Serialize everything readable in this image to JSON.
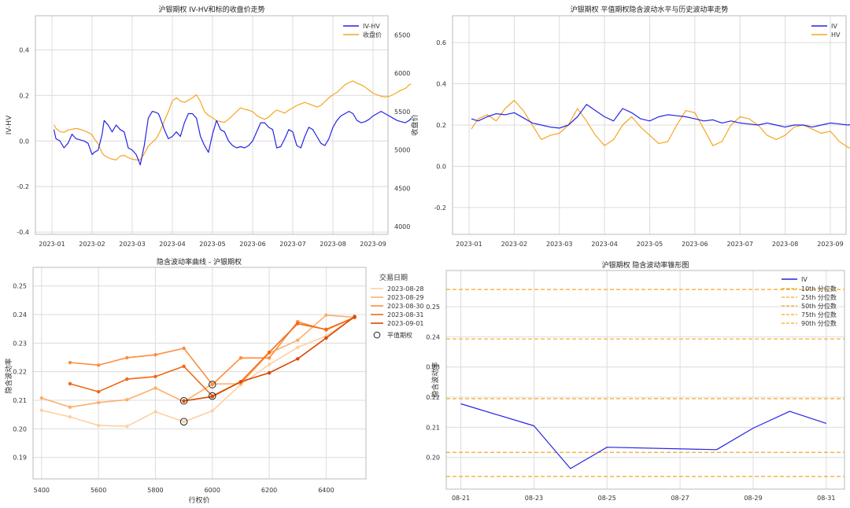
{
  "chart_data": [
    {
      "type": "line",
      "title": "沪银期权 IV-HV和标的收盘价走势",
      "xlabel": "",
      "ylabel": "IV-HV",
      "y2label": "收盘价",
      "ylim": [
        -0.41,
        0.55
      ],
      "y2lim": [
        3900,
        6750
      ],
      "yticks": [
        "-0.4",
        "-0.2",
        "0.0",
        "0.2",
        "0.4"
      ],
      "y2ticks": [
        "4000",
        "4500",
        "5000",
        "5500",
        "6000",
        "6500"
      ],
      "xticks": [
        "2023-01",
        "2023-02",
        "2023-03",
        "2023-04",
        "2023-05",
        "2023-06",
        "2023-07",
        "2023-08",
        "2023-09"
      ],
      "legend_position": "top-right",
      "grid": true,
      "series": [
        {
          "name": "IV-HV",
          "axis": "left",
          "color": "#2424e6",
          "x": [
            0.05,
            0.1,
            0.2,
            0.3,
            0.4,
            0.5,
            0.6,
            0.7,
            0.8,
            0.9,
            1.0,
            1.05,
            1.15,
            1.25,
            1.3,
            1.4,
            1.5,
            1.6,
            1.7,
            1.8,
            1.9,
            2.0,
            2.1,
            2.2,
            2.3,
            2.4,
            2.5,
            2.6,
            2.65,
            2.7,
            2.8,
            2.9,
            3.0,
            3.1,
            3.2,
            3.3,
            3.4,
            3.5,
            3.6,
            3.7,
            3.8,
            3.9,
            4.0,
            4.1,
            4.2,
            4.3,
            4.4,
            4.5,
            4.6,
            4.7,
            4.8,
            4.9,
            5.0,
            5.1,
            5.2,
            5.3,
            5.4,
            5.5,
            5.6,
            5.7,
            5.8,
            5.9,
            6.0,
            6.1,
            6.2,
            6.3,
            6.4,
            6.5,
            6.6,
            6.7,
            6.8,
            6.9,
            7.0,
            7.1,
            7.2,
            7.3,
            7.4,
            7.5,
            7.6,
            7.7,
            7.8,
            7.9,
            8.0,
            8.1,
            8.2,
            8.3,
            8.4,
            8.5,
            8.6,
            8.7,
            8.8,
            8.9,
            8.95
          ],
          "y": [
            0.05,
            0.01,
            0.0,
            -0.03,
            -0.01,
            0.03,
            0.01,
            0.005,
            0.0,
            -0.01,
            -0.06,
            -0.05,
            -0.04,
            0.03,
            0.09,
            0.07,
            0.04,
            0.07,
            0.05,
            0.04,
            -0.03,
            -0.04,
            -0.06,
            -0.105,
            -0.02,
            0.1,
            0.13,
            0.125,
            0.12,
            0.1,
            0.05,
            0.01,
            0.02,
            0.04,
            0.02,
            0.08,
            0.12,
            0.12,
            0.1,
            0.02,
            -0.02,
            -0.05,
            0.03,
            0.09,
            0.05,
            0.04,
            0.0,
            -0.02,
            -0.03,
            -0.025,
            -0.03,
            -0.02,
            0.0,
            0.04,
            0.08,
            0.08,
            0.06,
            0.05,
            -0.03,
            -0.025,
            0.01,
            0.05,
            0.04,
            -0.02,
            -0.03,
            0.02,
            0.06,
            0.05,
            0.02,
            -0.01,
            -0.02,
            0.01,
            0.06,
            0.09,
            0.11,
            0.12,
            0.13,
            0.12,
            0.09,
            0.08,
            0.085,
            0.095,
            0.11,
            0.12,
            0.13,
            0.12,
            0.11,
            0.1,
            0.09,
            0.085,
            0.08,
            0.09,
            0.1
          ]
        },
        {
          "name": "收盘价",
          "axis": "right",
          "color": "#f5a623",
          "x": [
            0.05,
            0.1,
            0.2,
            0.3,
            0.4,
            0.5,
            0.6,
            0.7,
            0.8,
            0.9,
            1.0,
            1.05,
            1.15,
            1.25,
            1.3,
            1.4,
            1.5,
            1.6,
            1.7,
            1.8,
            1.9,
            2.0,
            2.1,
            2.2,
            2.3,
            2.4,
            2.5,
            2.6,
            2.65,
            2.7,
            2.8,
            2.9,
            3.0,
            3.1,
            3.2,
            3.3,
            3.4,
            3.5,
            3.6,
            3.7,
            3.8,
            3.9,
            4.0,
            4.1,
            4.2,
            4.3,
            4.4,
            4.5,
            4.6,
            4.7,
            4.8,
            4.9,
            5.0,
            5.1,
            5.2,
            5.3,
            5.4,
            5.5,
            5.6,
            5.7,
            5.8,
            5.9,
            6.0,
            6.1,
            6.2,
            6.3,
            6.4,
            6.5,
            6.6,
            6.7,
            6.8,
            6.9,
            7.0,
            7.1,
            7.2,
            7.3,
            7.4,
            7.5,
            7.6,
            7.7,
            7.8,
            7.9,
            8.0,
            8.1,
            8.2,
            8.3,
            8.4,
            8.5,
            8.6,
            8.7,
            8.8,
            8.9,
            8.95
          ],
          "y": [
            5330,
            5280,
            5240,
            5230,
            5260,
            5270,
            5280,
            5270,
            5250,
            5230,
            5200,
            5150,
            5080,
            4960,
            4930,
            4900,
            4880,
            4870,
            4920,
            4930,
            4900,
            4880,
            4870,
            4870,
            4950,
            5050,
            5100,
            5150,
            5200,
            5250,
            5380,
            5500,
            5640,
            5680,
            5640,
            5620,
            5650,
            5680,
            5720,
            5630,
            5500,
            5450,
            5420,
            5380,
            5370,
            5360,
            5400,
            5450,
            5500,
            5550,
            5530,
            5520,
            5500,
            5450,
            5420,
            5400,
            5430,
            5480,
            5520,
            5500,
            5480,
            5520,
            5550,
            5580,
            5600,
            5620,
            5600,
            5580,
            5560,
            5580,
            5630,
            5680,
            5720,
            5750,
            5800,
            5850,
            5880,
            5900,
            5870,
            5850,
            5820,
            5780,
            5740,
            5720,
            5700,
            5690,
            5700,
            5720,
            5750,
            5780,
            5800,
            5850,
            5860
          ]
        }
      ]
    },
    {
      "type": "line",
      "title": "沪银期权 平值期权隐含波动水平与历史波动率走势",
      "xlabel": "",
      "ylabel": "",
      "ylim": [
        -0.33,
        0.73
      ],
      "yticks": [
        "-0.2",
        "0.0",
        "0.2",
        "0.4",
        "0.6"
      ],
      "xticks": [
        "2023-01",
        "2023-02",
        "2023-03",
        "2023-04",
        "2023-05",
        "2023-06",
        "2023-07",
        "2023-08",
        "2023-09"
      ],
      "legend_position": "top-right",
      "grid": true,
      "series": [
        {
          "name": "IV",
          "color": "#2424e6",
          "x": [
            0.05,
            0.2,
            0.4,
            0.6,
            0.8,
            1.0,
            1.2,
            1.4,
            1.6,
            1.8,
            2.0,
            2.2,
            2.4,
            2.6,
            2.8,
            3.0,
            3.2,
            3.4,
            3.6,
            3.8,
            4.0,
            4.2,
            4.4,
            4.6,
            4.8,
            5.0,
            5.2,
            5.4,
            5.6,
            5.8,
            6.0,
            6.2,
            6.4,
            6.6,
            6.8,
            7.0,
            7.2,
            7.4,
            7.6,
            7.8,
            8.0,
            8.2,
            8.4,
            8.6,
            8.8,
            8.95
          ],
          "y": [
            0.23,
            0.22,
            0.24,
            0.255,
            0.25,
            0.26,
            0.235,
            0.21,
            0.2,
            0.19,
            0.185,
            0.2,
            0.24,
            0.3,
            0.27,
            0.24,
            0.22,
            0.28,
            0.26,
            0.23,
            0.22,
            0.24,
            0.25,
            0.245,
            0.24,
            0.23,
            0.22,
            0.225,
            0.21,
            0.22,
            0.21,
            0.205,
            0.2,
            0.21,
            0.2,
            0.19,
            0.2,
            0.2,
            0.19,
            0.2,
            0.21,
            0.205,
            0.2,
            0.21,
            0.205,
            0.21
          ]
        },
        {
          "name": "HV",
          "color": "#f5a623",
          "x": [
            0.05,
            0.2,
            0.4,
            0.6,
            0.8,
            1.0,
            1.2,
            1.4,
            1.6,
            1.8,
            2.0,
            2.2,
            2.4,
            2.6,
            2.8,
            3.0,
            3.2,
            3.4,
            3.6,
            3.8,
            4.0,
            4.2,
            4.4,
            4.6,
            4.8,
            5.0,
            5.2,
            5.4,
            5.6,
            5.8,
            6.0,
            6.2,
            6.4,
            6.6,
            6.8,
            7.0,
            7.2,
            7.4,
            7.6,
            7.8,
            8.0,
            8.2,
            8.4,
            8.6,
            8.8,
            8.95
          ],
          "y": [
            0.18,
            0.23,
            0.25,
            0.22,
            0.28,
            0.32,
            0.27,
            0.2,
            0.13,
            0.15,
            0.16,
            0.2,
            0.28,
            0.22,
            0.15,
            0.1,
            0.13,
            0.2,
            0.24,
            0.19,
            0.15,
            0.11,
            0.12,
            0.2,
            0.27,
            0.26,
            0.18,
            0.1,
            0.12,
            0.2,
            0.24,
            0.23,
            0.2,
            0.15,
            0.13,
            0.15,
            0.19,
            0.2,
            0.18,
            0.16,
            0.17,
            0.12,
            0.09,
            0.08,
            0.1,
            0.12
          ]
        }
      ]
    },
    {
      "type": "line",
      "title": "隐含波动率曲线 - 沪银期权",
      "xlabel": "行权价",
      "ylabel": "隐含波动率",
      "xlim": [
        5370,
        6540
      ],
      "ylim": [
        0.1825,
        0.2565
      ],
      "xticks": [
        "5400",
        "5600",
        "5800",
        "6000",
        "6200",
        "6400"
      ],
      "yticks": [
        "0.19",
        "0.20",
        "0.21",
        "0.22",
        "0.23",
        "0.24",
        "0.25"
      ],
      "legend_title": "交易日期",
      "legend_position": "upper-right-outside",
      "grid": true,
      "series": [
        {
          "name": "2023-08-28",
          "color": "#fdd0a2",
          "x": [
            5400,
            5500,
            5600,
            5700,
            5800,
            5900,
            6000,
            6100,
            6200,
            6300,
            6400,
            6500
          ],
          "y": [
            0.2065,
            0.2042,
            0.2012,
            0.2009,
            0.206,
            0.2025,
            0.2063,
            0.2155,
            0.2225,
            0.2285,
            0.2325,
            0.239
          ]
        },
        {
          "name": "2023-08-29",
          "color": "#fdae6b",
          "x": [
            5400,
            5500,
            5600,
            5700,
            5800,
            5900,
            6000,
            6100,
            6200,
            6300,
            6400,
            6500
          ],
          "y": [
            0.2108,
            0.2076,
            0.2092,
            0.2102,
            0.2143,
            0.2095,
            0.2157,
            0.2158,
            0.2265,
            0.231,
            0.2398,
            0.239
          ]
        },
        {
          "name": "2023-08-30",
          "color": "#fd8d3c",
          "x": [
            5500,
            5600,
            5700,
            5800,
            5900,
            6000,
            6100,
            6200,
            6300,
            6400,
            6500
          ],
          "y": [
            0.2232,
            0.2223,
            0.2249,
            0.2259,
            0.2282,
            0.2155,
            0.2248,
            0.2248,
            0.2375,
            0.2346,
            0.239
          ]
        },
        {
          "name": "2023-08-31",
          "color": "#f16913",
          "x": [
            5500,
            5600,
            5700,
            5800,
            5900,
            6000,
            6100,
            6200,
            6300,
            6400,
            6500
          ],
          "y": [
            0.2158,
            0.213,
            0.2174,
            0.2183,
            0.2219,
            0.2115,
            0.2165,
            0.2268,
            0.2368,
            0.2348,
            0.239
          ]
        },
        {
          "name": "2023-09-01",
          "color": "#d94801",
          "x": [
            5900,
            6000,
            6100,
            6200,
            6300,
            6400,
            6500
          ],
          "y": [
            0.2098,
            0.2113,
            0.2165,
            0.2196,
            0.2245,
            0.2318,
            0.2393
          ]
        }
      ],
      "atm_label": "平值期权",
      "atm_points": [
        {
          "x": 5900,
          "y": 0.2025
        },
        {
          "x": 5900,
          "y": 0.2098
        },
        {
          "x": 6000,
          "y": 0.2115
        },
        {
          "x": 6000,
          "y": 0.2155
        }
      ]
    },
    {
      "type": "line",
      "title": "沪银期权 隐含波动率锥形图",
      "xlabel": "",
      "ylabel": "隐含波动率",
      "xlim": [
        -0.4,
        10.5
      ],
      "ylim": [
        0.1895,
        0.262
      ],
      "xticks": [
        "08-21",
        "08-23",
        "08-25",
        "08-27",
        "08-29",
        "08-31"
      ],
      "yticks": [
        "0.20",
        "0.21",
        "0.22",
        "0.23",
        "0.24",
        "0.25"
      ],
      "legend_position": "top-right",
      "grid": true,
      "series": [
        {
          "name": "IV",
          "color": "#2424e6",
          "x": [
            0,
            2,
            3,
            4,
            7,
            8,
            9,
            10
          ],
          "y": [
            0.2178,
            0.2105,
            0.1963,
            0.2034,
            0.2026,
            0.2097,
            0.2153,
            0.2113
          ]
        }
      ],
      "percentiles": [
        {
          "name": "10th 分位数",
          "value": 0.1937
        },
        {
          "name": "25th 分位数",
          "value": 0.2017
        },
        {
          "name": "50th 分位数",
          "value": 0.2195
        },
        {
          "name": "75th 分位数",
          "value": 0.2393
        },
        {
          "name": "90th 分位数",
          "value": 0.2557
        }
      ],
      "percentile_color": "#f5a623"
    }
  ]
}
